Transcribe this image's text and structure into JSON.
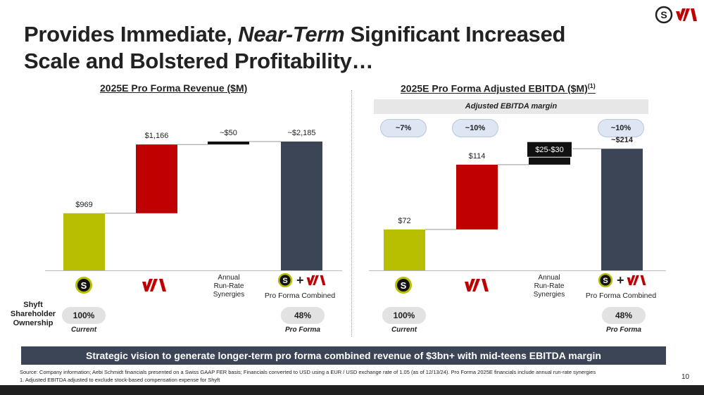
{
  "slide": {
    "title_line1_a": "Provides Immediate, ",
    "title_line1_em": "Near-Term",
    "title_line1_b": " Significant Increased",
    "title_line2": "Scale and Bolstered Profitability…",
    "page_number": "10"
  },
  "colors": {
    "current": "#b7bf00",
    "acquired": "#c00000",
    "synergy": "#111111",
    "combined": "#3b4556",
    "connector": "#999999"
  },
  "logos": {
    "shyft_letter": "S",
    "shyft_icon": "shyft-s-logo",
    "aebi_icon": "aebi-schmidt-va-logo"
  },
  "revenue": {
    "title": "2025E Pro Forma Revenue ($M)",
    "synergy_label_1": "Annual",
    "synergy_label_2": "Run-Rate",
    "synergy_label_3": "Synergies",
    "combined_label": "Pro Forma Combined"
  },
  "ebitda": {
    "title": "2025E Pro Forma Adjusted EBITDA ($M)",
    "title_sup": "(1)",
    "margin_banner": "Adjusted EBITDA margin",
    "margins": [
      "~7%",
      "~10%",
      "~10%"
    ],
    "synergy_label_1": "Annual",
    "synergy_label_2": "Run-Rate",
    "synergy_label_3": "Synergies",
    "combined_label": "Pro Forma Combined"
  },
  "ownership": {
    "heading_1": "Shyft",
    "heading_2": "Shareholder",
    "heading_3": "Ownership",
    "current_value": "100%",
    "current_label": "Current",
    "proforma_value": "48%",
    "proforma_label": "Pro Forma"
  },
  "banner": "Strategic vision to generate longer-term pro forma combined revenue of $3bn+ with mid-teens EBITDA margin",
  "footnotes": {
    "source": "Source: Company information; Aebi Schmidt financials presented on a Swiss GAAP FER basis; Financials converted to USD using a EUR / USD exchange rate of 1.05 (as of 12/13/24). Pro Forma 2025E financials include annual run-rate synergies",
    "note1": "1.   Adjusted EBITDA adjusted to exclude stock-based compensation expense for Shyft"
  },
  "chart_data": [
    {
      "type": "bar",
      "subtype": "waterfall",
      "title": "2025E Pro Forma Revenue ($M)",
      "categories": [
        "Shyft",
        "Aebi Schmidt",
        "Annual Run-Rate Synergies",
        "Pro Forma Combined"
      ],
      "values": [
        969,
        1166,
        50,
        2185
      ],
      "data_labels": [
        "$969",
        "$1,166",
        "~$50",
        "~$2,185"
      ],
      "series_roles": [
        "current",
        "acquired",
        "synergy",
        "combined"
      ],
      "ylim": [
        0,
        2400
      ]
    },
    {
      "type": "bar",
      "subtype": "waterfall",
      "title": "2025E Pro Forma Adjusted EBITDA ($M)",
      "categories": [
        "Shyft",
        "Aebi Schmidt",
        "Annual Run-Rate Synergies",
        "Pro Forma Combined"
      ],
      "values": [
        72,
        114,
        28,
        214
      ],
      "data_labels": [
        "$72",
        "$114",
        "$25-$30",
        "~$214"
      ],
      "series_roles": [
        "current",
        "acquired",
        "synergy",
        "combined"
      ],
      "ylim": [
        0,
        244
      ],
      "margins": [
        "~7%",
        "~10%",
        "~10%"
      ]
    }
  ]
}
